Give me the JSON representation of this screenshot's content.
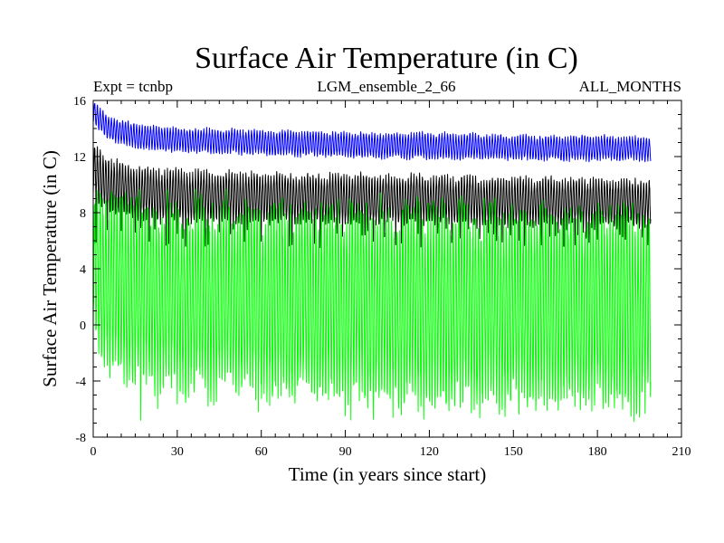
{
  "chart_data": {
    "type": "line",
    "title": "Surface Air Temperature (in C)",
    "subtitle_left": "Expt = tcnbp",
    "subtitle_center": "LGM_ensemble_2_66",
    "subtitle_right": "ALL_MONTHS",
    "xlabel": "Time (in years since start)",
    "ylabel": "Surface Air Temperature (in C)",
    "xlim": [
      0,
      210
    ],
    "ylim": [
      -8,
      16
    ],
    "xticks": [
      0,
      30,
      60,
      90,
      120,
      150,
      180,
      210
    ],
    "yticks": [
      -8,
      -4,
      0,
      4,
      8,
      12,
      16
    ],
    "grid": false,
    "series": [
      {
        "name": "upper (blue)",
        "color": "#0000ff",
        "envelope": {
          "x": [
            0,
            2,
            5,
            10,
            20,
            40,
            60,
            80,
            100,
            120,
            140,
            160,
            180,
            199
          ],
          "upper": [
            15.9,
            15.4,
            14.9,
            14.5,
            14.1,
            13.9,
            13.8,
            13.7,
            13.6,
            13.6,
            13.5,
            13.4,
            13.4,
            13.3
          ],
          "lower": [
            14.5,
            13.9,
            13.4,
            12.9,
            12.5,
            12.3,
            12.2,
            12.1,
            12.0,
            11.9,
            11.9,
            11.8,
            11.8,
            11.8
          ]
        }
      },
      {
        "name": "middle (black)",
        "color": "#000000",
        "envelope": {
          "x": [
            0,
            2,
            5,
            10,
            20,
            40,
            60,
            80,
            100,
            120,
            140,
            160,
            180,
            199
          ],
          "upper": [
            12.7,
            12.2,
            11.8,
            11.4,
            11.0,
            10.8,
            10.7,
            10.6,
            10.5,
            10.5,
            10.4,
            10.3,
            10.3,
            10.2
          ],
          "lower": [
            9.3,
            8.7,
            8.3,
            7.9,
            7.6,
            7.5,
            7.5,
            7.4,
            7.4,
            7.4,
            7.3,
            7.3,
            7.2,
            7.2
          ]
        },
        "spike_minima": [
          5.5,
          7.0
        ]
      },
      {
        "name": "lower (green)",
        "color": "#00ff00",
        "envelope": {
          "x": [
            0,
            2,
            5,
            10,
            20,
            40,
            60,
            80,
            100,
            120,
            140,
            160,
            180,
            199
          ],
          "upper": [
            10.0,
            9.3,
            9.0,
            8.7,
            8.4,
            8.2,
            8.2,
            8.1,
            8.1,
            8.0,
            8.0,
            7.9,
            7.9,
            7.8
          ],
          "lower": [
            -0.5,
            -1.5,
            -2.5,
            -3.3,
            -3.9,
            -4.3,
            -4.6,
            -4.8,
            -5.0,
            -5.1,
            -5.2,
            -5.3,
            -5.4,
            -5.5
          ]
        },
        "peak_maxima": [
          5.5,
          7.5
        ],
        "trough_minima": [
          -6.9,
          -5.5
        ]
      }
    ]
  }
}
